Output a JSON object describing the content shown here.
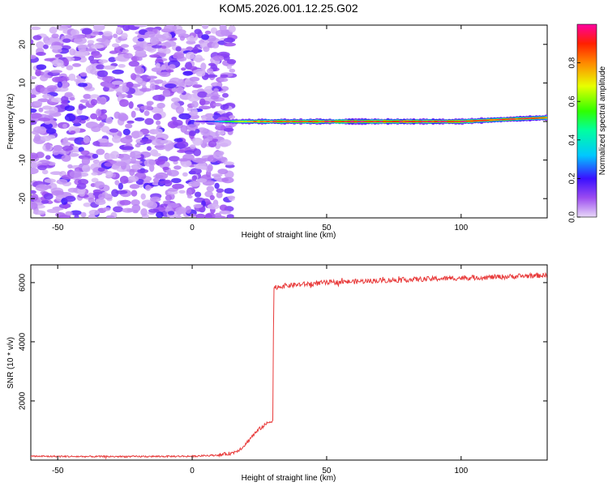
{
  "title": "KOM5.2026.001.12.25.G02",
  "chart_data": [
    {
      "type": "heatmap",
      "xlabel": "Height of straight line (km)",
      "ylabel": "Frequency (Hz)",
      "xlim": [
        -60,
        132
      ],
      "ylim": [
        -25,
        25
      ],
      "xticks": [
        -50,
        0,
        50,
        100
      ],
      "yticks": [
        -20,
        -10,
        0,
        10,
        20
      ],
      "noise_region": {
        "x_range": [
          -60,
          15
        ],
        "description_value": "scattered low amplitude"
      },
      "signal_band": [
        {
          "x": 2,
          "freq": 0,
          "amp": 0.15
        },
        {
          "x": 8,
          "freq": 0,
          "amp": 0.25
        },
        {
          "x": 15,
          "freq": 0,
          "amp": 0.6
        },
        {
          "x": 25,
          "freq": 0,
          "amp": 0.9
        },
        {
          "x": 40,
          "freq": 0,
          "amp": 0.95
        },
        {
          "x": 60,
          "freq": 0,
          "amp": 1.0
        },
        {
          "x": 80,
          "freq": 0,
          "amp": 1.0
        },
        {
          "x": 100,
          "freq": 0,
          "amp": 1.0
        },
        {
          "x": 115,
          "freq": 0.5,
          "amp": 0.95
        },
        {
          "x": 132,
          "freq": 1,
          "amp": 0.9
        }
      ],
      "colorbar": {
        "label": "Normalized spectral amplitude",
        "range": [
          0,
          1
        ],
        "ticks": [
          "0.0",
          "0.2",
          "0.4",
          "0.6",
          "0.8"
        ],
        "tick_values": [
          0,
          0.2,
          0.4,
          0.6,
          0.8
        ]
      }
    },
    {
      "type": "line",
      "xlabel": "Height of straight line (km)",
      "ylabel": "SNR (10 * v/v)",
      "xlim": [
        -60,
        132
      ],
      "ylim": [
        0,
        6600
      ],
      "xticks": [
        -50,
        0,
        50,
        100
      ],
      "yticks": [
        2000,
        4000,
        6000
      ],
      "series": [
        {
          "color": "#e83a3a",
          "x": [
            -60,
            -40,
            -20,
            0,
            10,
            15,
            18,
            20,
            22,
            25,
            28,
            30,
            30.3,
            31,
            35,
            50,
            70,
            90,
            110,
            132
          ],
          "y": [
            130,
            120,
            120,
            130,
            170,
            240,
            380,
            550,
            780,
            1050,
            1250,
            1350,
            5800,
            5850,
            5900,
            6000,
            6070,
            6130,
            6180,
            6250
          ]
        }
      ]
    }
  ]
}
